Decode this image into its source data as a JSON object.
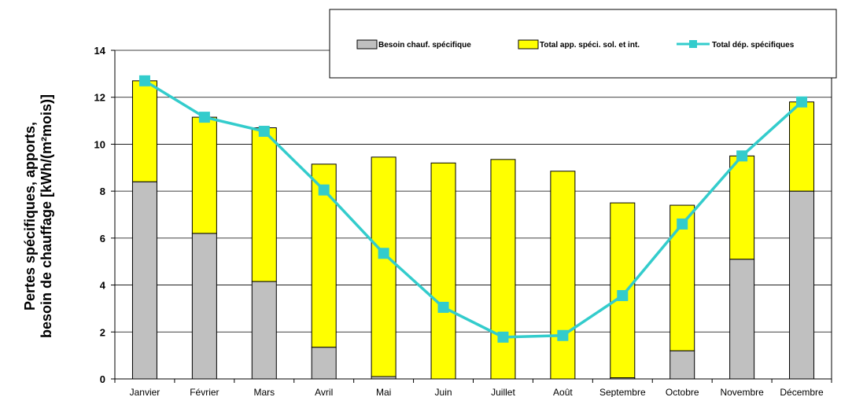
{
  "chart_data": {
    "type": "bar",
    "stacked": true,
    "categories": [
      "Janvier",
      "Février",
      "Mars",
      "Avril",
      "Mai",
      "Juin",
      "Juillet",
      "Août",
      "Septembre",
      "Octobre",
      "Novembre",
      "Décembre"
    ],
    "series": [
      {
        "name": "Besoin chauf. spécifique",
        "type": "bar",
        "color": "#c0c0c0",
        "values": [
          8.4,
          6.2,
          4.15,
          1.35,
          0.1,
          0,
          0,
          0,
          0.05,
          1.2,
          5.1,
          8.0
        ]
      },
      {
        "name": "Total app. spéci. sol. et int.",
        "type": "bar",
        "color": "#ffff00",
        "values": [
          4.3,
          4.95,
          6.55,
          7.8,
          9.35,
          9.2,
          9.35,
          8.85,
          7.45,
          6.2,
          4.4,
          3.8
        ]
      },
      {
        "name": "Total dép. spécifiques",
        "type": "line",
        "color": "#33cccc",
        "values": [
          12.7,
          11.15,
          10.55,
          8.05,
          5.35,
          3.05,
          1.78,
          1.85,
          3.55,
          6.6,
          9.5,
          11.8
        ]
      }
    ],
    "yticks": [
      0,
      2,
      4,
      6,
      8,
      10,
      12,
      14
    ],
    "ylim": [
      0,
      14
    ],
    "ylabel_line1": "Pertes spécifiques, apports,",
    "ylabel_line2": "besoin de chauffage [kWh/(m²mois)]",
    "grid": true,
    "legend_position": "top-right"
  }
}
